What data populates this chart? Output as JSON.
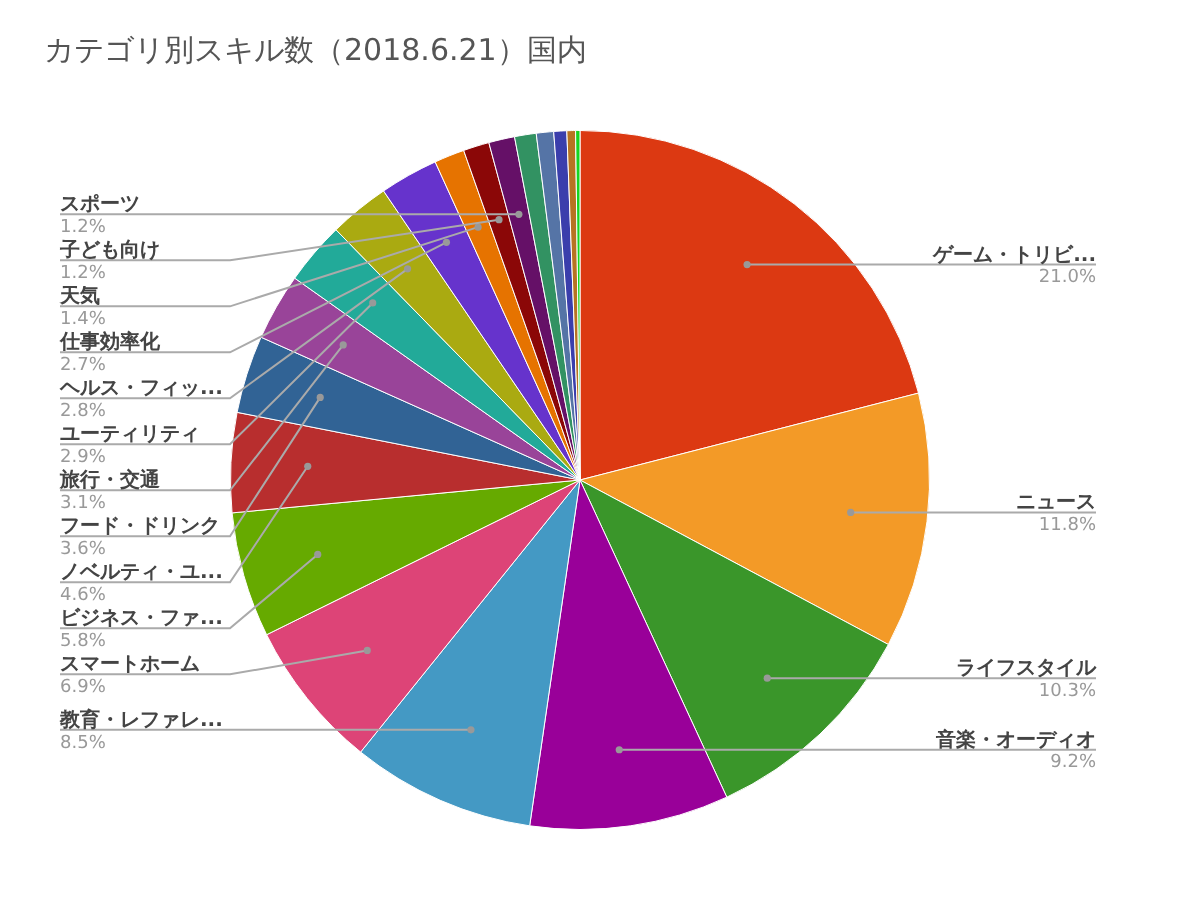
{
  "chart_data": {
    "type": "pie",
    "title": "カテゴリ別スキル数（2018.6.21）国内",
    "categories": [
      "ゲーム・トリビ...",
      "ニュース",
      "ライフスタイル",
      "音楽・オーディオ",
      "教育・レファレ...",
      "スマートホーム",
      "ビジネス・ファ...",
      "ノベルティ・ユ...",
      "フード・ドリンク",
      "旅行・交通",
      "ユーティリティ",
      "ヘルス・フィッ...",
      "仕事効率化",
      "天気",
      "子ども向け",
      "スポーツ",
      null,
      null,
      null,
      null,
      null
    ],
    "values": [
      21.0,
      11.8,
      10.3,
      9.2,
      8.5,
      6.9,
      5.8,
      4.6,
      3.6,
      3.1,
      2.9,
      2.8,
      2.7,
      1.4,
      1.2,
      1.2,
      1.0,
      0.8,
      0.6,
      0.4,
      0.2
    ],
    "value_labels": [
      "21.0%",
      "11.8%",
      "10.3%",
      "9.2%",
      "8.5%",
      "6.9%",
      "5.8%",
      "4.6%",
      "3.6%",
      "3.1%",
      "2.9%",
      "2.8%",
      "2.7%",
      "1.4%",
      "1.2%",
      "1.2%",
      null,
      null,
      null,
      null,
      null
    ],
    "colors": [
      "#dc3912",
      "#f39a27",
      "#3a962a",
      "#990099",
      "#4499c4",
      "#dd4477",
      "#66aa00",
      "#b82e2e",
      "#316395",
      "#994499",
      "#22aa99",
      "#aaaa11",
      "#6633cc",
      "#e67300",
      "#8b0707",
      "#651067",
      "#329262",
      "#5574a6",
      "#3b3eac",
      "#b77322",
      "#16d620"
    ],
    "legend": false
  }
}
